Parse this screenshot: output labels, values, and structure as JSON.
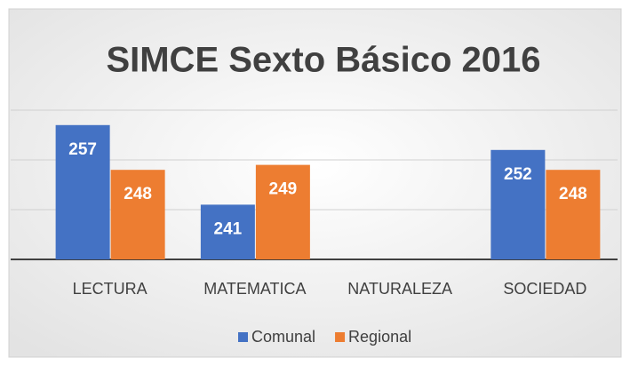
{
  "chart_data": {
    "type": "bar",
    "title": "SIMCE Sexto Básico 2016",
    "categories": [
      "LECTURA",
      "MATEMATICA",
      "NATURALEZA",
      "SOCIEDAD"
    ],
    "series": [
      {
        "name": "Comunal",
        "color": "#4472c4",
        "values": [
          257,
          241,
          null,
          252
        ]
      },
      {
        "name": "Regional",
        "color": "#ed7d31",
        "values": [
          248,
          249,
          null,
          248
        ]
      }
    ],
    "ylim": [
      230,
      260
    ],
    "yticks": [
      230,
      240,
      250,
      260
    ],
    "grid": true,
    "legend": "bottom"
  }
}
